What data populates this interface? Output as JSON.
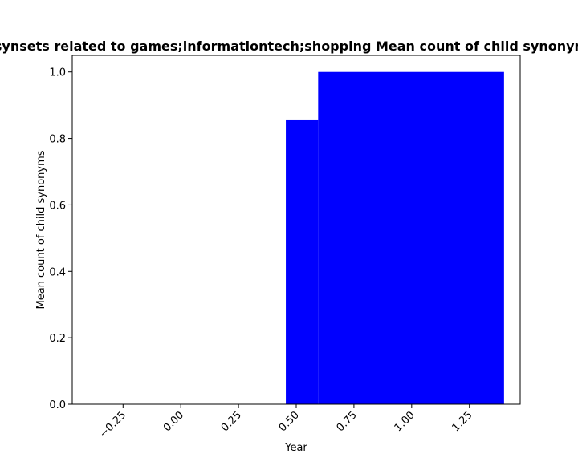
{
  "chart_data": {
    "type": "bar",
    "title": "Number of synsets related to games;informationtech;shopping Mean count of child synonyms in period",
    "xlabel": "Year",
    "ylabel": "Mean count of child synonyms",
    "xlim": [
      -0.47,
      1.47
    ],
    "ylim": [
      0,
      1.05
    ],
    "x_ticks": [
      -0.25,
      0.0,
      0.25,
      0.5,
      0.75,
      1.0,
      1.25
    ],
    "x_tick_labels": [
      "−0.25",
      "0.00",
      "0.25",
      "0.50",
      "0.75",
      "1.00",
      "1.25"
    ],
    "y_ticks": [
      0.0,
      0.2,
      0.4,
      0.6,
      0.8,
      1.0
    ],
    "y_tick_labels": [
      "0.0",
      "0.2",
      "0.4",
      "0.6",
      "0.8",
      "1.0"
    ],
    "bars": [
      {
        "x0": 0.455,
        "x1": 0.595,
        "value": 0.857
      },
      {
        "x0": 0.595,
        "x1": 1.4,
        "value": 1.0
      }
    ],
    "bar_color": "#0000ff",
    "grid": false,
    "legend": "none"
  }
}
